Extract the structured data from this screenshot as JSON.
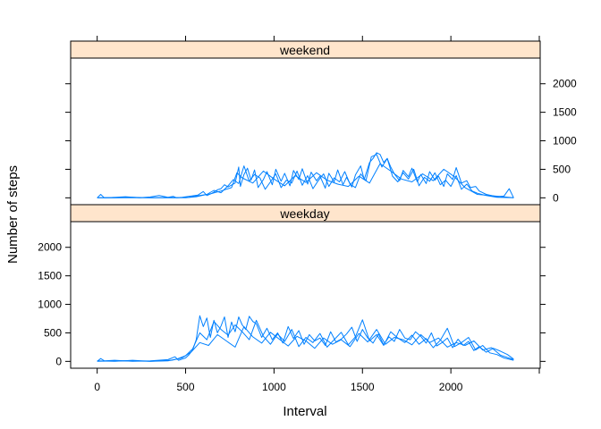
{
  "chart_data": {
    "type": "line",
    "title": "",
    "xlabel": "Interval",
    "ylabel": "Number of steps",
    "xlim": [
      -150,
      2505
    ],
    "ylim": [
      -120,
      2450
    ],
    "x_ticks": [
      0,
      500,
      1000,
      1500,
      2000
    ],
    "y_ticks": [
      0,
      500,
      1000,
      1500,
      2000
    ],
    "grid": false,
    "strip_color": "#ffe5cc",
    "line_color": "#0080ff",
    "panels": [
      {
        "name": "weekend",
        "series": [
          {
            "x": [
              0,
              20,
              40,
              80,
              160,
              240,
              300,
              350,
              400,
              430,
              450,
              480,
              530,
              570,
              600,
              620,
              650,
              680,
              700,
              720,
              740,
              780,
              800,
              810,
              830,
              850,
              870,
              890,
              910,
              940,
              960,
              990,
              1010,
              1040,
              1060,
              1090,
              1110,
              1140,
              1160,
              1190,
              1210,
              1240,
              1260,
              1290,
              1310,
              1340,
              1360,
              1390,
              1410,
              1440,
              1460,
              1490,
              1510,
              1540,
              1560,
              1580,
              1600,
              1620,
              1640,
              1660,
              1680,
              1710,
              1730,
              1760,
              1780,
              1810,
              1830,
              1860,
              1880,
              1910,
              1930,
              1960,
              1980,
              2010,
              2030,
              2060,
              2090,
              2110,
              2140,
              2160,
              2200,
              2260,
              2300,
              2330,
              2355
            ],
            "y": [
              0,
              60,
              0,
              5,
              20,
              0,
              15,
              40,
              10,
              25,
              0,
              10,
              30,
              50,
              110,
              40,
              80,
              140,
              160,
              230,
              190,
              260,
              540,
              200,
              410,
              520,
              310,
              490,
              180,
              320,
              460,
              230,
              500,
              290,
              430,
              210,
              480,
              320,
              510,
              240,
              450,
              300,
              380,
              170,
              430,
              280,
              490,
              230,
              360,
              190,
              400,
              560,
              320,
              620,
              690,
              790,
              760,
              620,
              690,
              540,
              420,
              300,
              480,
              370,
              520,
              280,
              410,
              250,
              460,
              310,
              380,
              200,
              420,
              320,
              530,
              260,
              300,
              180,
              200,
              120,
              60,
              20,
              30,
              160,
              0
            ]
          },
          {
            "x": [
              0,
              100,
              200,
              300,
              400,
              500,
              560,
              620,
              660,
              700,
              740,
              770,
              800,
              830,
              860,
              890,
              920,
              950,
              980,
              1010,
              1040,
              1070,
              1100,
              1130,
              1160,
              1190,
              1220,
              1250,
              1280,
              1310,
              1340,
              1370,
              1400,
              1430,
              1460,
              1490,
              1520,
              1550,
              1580,
              1610,
              1640,
              1670,
              1700,
              1730,
              1760,
              1790,
              1820,
              1850,
              1880,
              1910,
              1940,
              1970,
              2000,
              2030,
              2060,
              2090,
              2120,
              2150,
              2200,
              2260,
              2355
            ],
            "y": [
              0,
              0,
              10,
              0,
              5,
              0,
              20,
              60,
              130,
              90,
              210,
              320,
              250,
              560,
              290,
              410,
              350,
              150,
              280,
              420,
              180,
              310,
              260,
              470,
              220,
              390,
              160,
              300,
              420,
              200,
              350,
              280,
              460,
              240,
              180,
              420,
              300,
              720,
              760,
              540,
              690,
              380,
              280,
              440,
              330,
              500,
              210,
              360,
              290,
              440,
              230,
              310,
              200,
              390,
              150,
              240,
              120,
              80,
              40,
              10,
              0
            ]
          },
          {
            "x": [
              0,
              150,
              300,
              450,
              520,
              580,
              640,
              700,
              760,
              790,
              820,
              880,
              940,
              1000,
              1060,
              1120,
              1180,
              1240,
              1300,
              1360,
              1420,
              1480,
              1540,
              1600,
              1660,
              1720,
              1780,
              1840,
              1900,
              1960,
              2020,
              2080,
              2150,
              2355
            ],
            "y": [
              0,
              0,
              0,
              0,
              10,
              40,
              70,
              120,
              180,
              440,
              350,
              260,
              470,
              330,
              210,
              390,
              270,
              440,
              310,
              240,
              200,
              380,
              260,
              600,
              470,
              330,
              280,
              420,
              300,
              500,
              370,
              180,
              60,
              0
            ]
          }
        ]
      },
      {
        "name": "weekday",
        "series": [
          {
            "x": [
              0,
              20,
              40,
              100,
              200,
              300,
              400,
              440,
              460,
              480,
              500,
              520,
              540,
              560,
              580,
              600,
              620,
              640,
              660,
              680,
              700,
              720,
              740,
              760,
              780,
              800,
              820,
              840,
              860,
              880,
              900,
              930,
              960,
              990,
              1020,
              1050,
              1080,
              1110,
              1140,
              1170,
              1200,
              1230,
              1260,
              1290,
              1320,
              1350,
              1380,
              1410,
              1440,
              1470,
              1500,
              1530,
              1560,
              1590,
              1620,
              1650,
              1680,
              1710,
              1740,
              1770,
              1800,
              1830,
              1860,
              1890,
              1920,
              1950,
              1980,
              2010,
              2040,
              2070,
              2100,
              2130,
              2160,
              2200,
              2240,
              2280,
              2320,
              2355
            ],
            "y": [
              0,
              50,
              10,
              20,
              0,
              10,
              30,
              80,
              20,
              40,
              60,
              120,
              200,
              380,
              800,
              610,
              760,
              420,
              720,
              500,
              620,
              780,
              420,
              690,
              520,
              780,
              640,
              560,
              790,
              700,
              660,
              420,
              580,
              380,
              500,
              320,
              610,
              400,
              540,
              300,
              470,
              360,
              410,
              280,
              520,
              340,
              390,
              480,
              600,
              350,
              560,
              410,
              320,
              480,
              290,
              430,
              350,
              560,
              410,
              380,
              520,
              440,
              320,
              500,
              270,
              330,
              410,
              240,
              390,
              280,
              350,
              190,
              260,
              160,
              230,
              180,
              120,
              40
            ]
          },
          {
            "x": [
              0,
              100,
              200,
              300,
              400,
              450,
              500,
              540,
              580,
              620,
              660,
              700,
              740,
              780,
              820,
              860,
              900,
              940,
              980,
              1020,
              1060,
              1100,
              1140,
              1180,
              1220,
              1260,
              1300,
              1340,
              1380,
              1420,
              1460,
              1500,
              1540,
              1580,
              1620,
              1660,
              1700,
              1740,
              1780,
              1820,
              1860,
              1900,
              1940,
              1980,
              2020,
              2060,
              2100,
              2140,
              2180,
              2220,
              2260,
              2300,
              2355
            ],
            "y": [
              10,
              0,
              20,
              0,
              10,
              40,
              100,
              220,
              500,
              380,
              700,
              560,
              460,
              640,
              520,
              380,
              720,
              440,
              300,
              480,
              350,
              560,
              260,
              420,
              330,
              490,
              250,
              380,
              510,
              290,
              430,
              730,
              360,
              470,
              280,
              520,
              410,
              330,
              460,
              300,
              400,
              240,
              370,
              580,
              260,
              330,
              420,
              200,
              280,
              150,
              120,
              60,
              20
            ]
          },
          {
            "x": [
              0,
              150,
              300,
              420,
              480,
              530,
              580,
              630,
              680,
              730,
              780,
              830,
              880,
              930,
              980,
              1030,
              1080,
              1130,
              1180,
              1230,
              1280,
              1330,
              1380,
              1430,
              1480,
              1530,
              1580,
              1630,
              1680,
              1730,
              1780,
              1830,
              1880,
              1930,
              1980,
              2030,
              2080,
              2130,
              2180,
              2230,
              2280,
              2355
            ],
            "y": [
              0,
              10,
              0,
              20,
              60,
              160,
              330,
              280,
              470,
              360,
              250,
              610,
              430,
              320,
              510,
              390,
              270,
              440,
              360,
              230,
              410,
              300,
              380,
              260,
              490,
              340,
              560,
              300,
              420,
              380,
              290,
              470,
              330,
              410,
              250,
              330,
              280,
              360,
              200,
              240,
              110,
              30
            ]
          }
        ]
      }
    ]
  }
}
